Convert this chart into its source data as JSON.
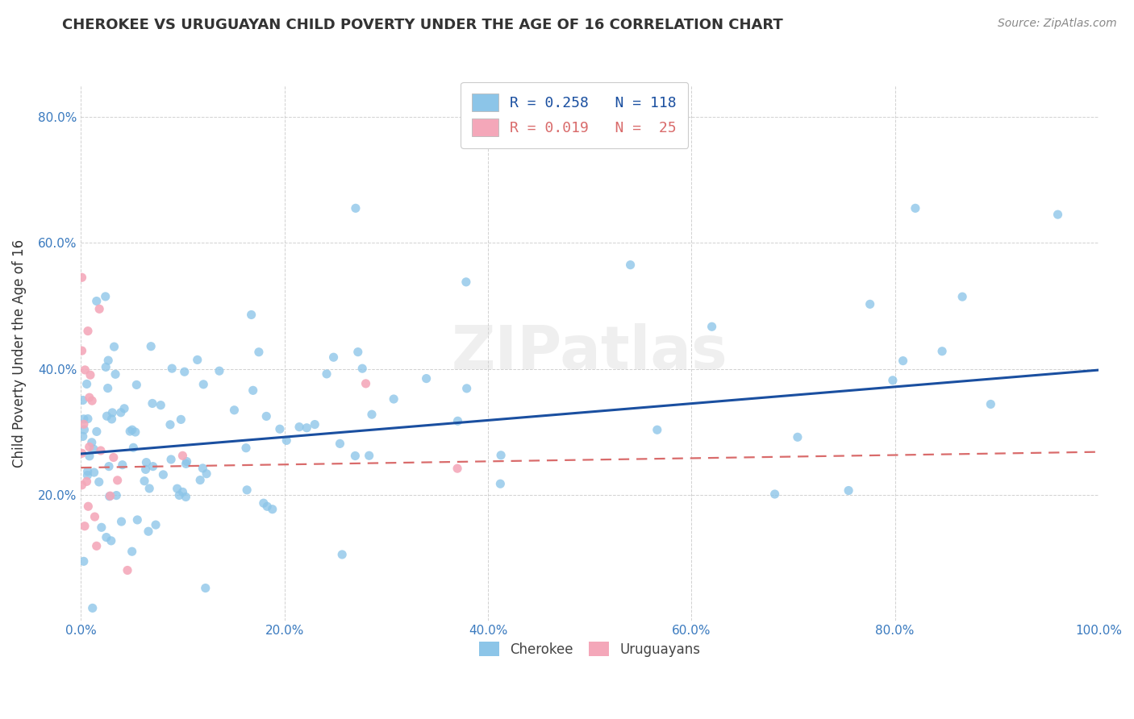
{
  "title": "CHEROKEE VS URUGUAYAN CHILD POVERTY UNDER THE AGE OF 16 CORRELATION CHART",
  "source": "Source: ZipAtlas.com",
  "ylabel": "Child Poverty Under the Age of 16",
  "cherokee_R": 0.258,
  "cherokee_N": 118,
  "uruguayan_R": 0.019,
  "uruguayan_N": 25,
  "cherokee_color": "#8cc5e8",
  "uruguayan_color": "#f4a7b9",
  "cherokee_line_color": "#1a4fa0",
  "uruguayan_line_color": "#d96b6b",
  "background_color": "#ffffff",
  "watermark": "ZIPatlas",
  "cherokee_intercept": 0.265,
  "cherokee_slope": 0.133,
  "uruguayan_intercept": 0.243,
  "uruguayan_slope": 0.025,
  "xlim": [
    0,
    1.0
  ],
  "ylim": [
    0,
    0.85
  ],
  "xticks": [
    0.0,
    0.2,
    0.4,
    0.6,
    0.8,
    1.0
  ],
  "yticks": [
    0.0,
    0.2,
    0.4,
    0.6,
    0.8
  ],
  "xtick_labels": [
    "0.0%",
    "20.0%",
    "40.0%",
    "60.0%",
    "80.0%",
    "100.0%"
  ],
  "ytick_labels": [
    "",
    "20.0%",
    "40.0%",
    "60.0%",
    "80.0%"
  ],
  "tick_color": "#3a7abf",
  "grid_color": "#cccccc",
  "title_color": "#333333",
  "source_color": "#888888"
}
